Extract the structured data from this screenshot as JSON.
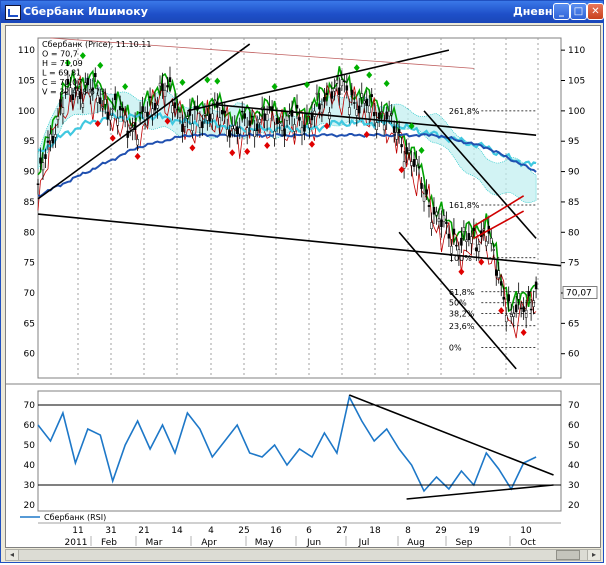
{
  "window": {
    "title": "Сбербанк Ишимоку",
    "mode": "Дневной",
    "min_label": "_",
    "max_label": "□",
    "close_label": "✕",
    "icon": "chart-app-icon"
  },
  "scroll": {
    "left_label": "◂",
    "right_label": "▸"
  },
  "chart_data": [
    {
      "type": "line",
      "name": "price",
      "info": [
        "Сбербанк (Price), 11.10.11",
        "O = 70,7",
        "H = 71,09",
        "L = 69,81",
        "C = 70,07",
        "V = 32 438 673"
      ],
      "y_ticks": [
        60,
        65,
        70,
        75,
        80,
        85,
        90,
        95,
        100,
        105,
        110
      ],
      "ylim": [
        56,
        112
      ],
      "last_value_label": "70,07",
      "last_value": 70.07,
      "fib_levels": [
        {
          "label": "261,8%",
          "value": 100.0
        },
        {
          "label": "161,8%",
          "value": 84.5
        },
        {
          "label": "100%",
          "value": 75.8
        },
        {
          "label": "61,8%",
          "value": 70.2
        },
        {
          "label": "50%",
          "value": 68.4
        },
        {
          "label": "38,2%",
          "value": 66.6
        },
        {
          "label": "23,6%",
          "value": 64.6
        },
        {
          "label": "0%",
          "value": 61.0
        }
      ],
      "x_index": [
        0,
        10,
        20,
        30,
        40,
        50,
        60,
        70,
        80,
        90,
        100,
        110,
        120,
        130,
        140,
        150,
        160,
        170,
        180,
        190,
        200
      ],
      "close_approx": [
        88,
        102,
        104,
        100,
        97,
        104,
        98,
        100,
        97,
        99,
        98,
        99,
        104,
        101,
        99,
        92,
        82,
        78,
        80,
        66,
        70
      ],
      "cloud_upper_approx": [
        93,
        103,
        105,
        103,
        102,
        103,
        101,
        100,
        101,
        99,
        99,
        100,
        103,
        102,
        101,
        100,
        99,
        96,
        92,
        92,
        90
      ],
      "cloud_lower_approx": [
        90,
        98,
        100,
        99,
        98,
        97,
        96,
        96,
        96,
        96,
        96,
        97,
        98,
        98,
        98,
        97,
        95,
        91,
        87,
        86,
        85
      ],
      "ma_cyan_approx": [
        93,
        96,
        98,
        99,
        99,
        99,
        98,
        98,
        97,
        97,
        97,
        97,
        98,
        98,
        98,
        97,
        96,
        95,
        94,
        92,
        91
      ],
      "ma_blue_approx": [
        86,
        88,
        90,
        92,
        94,
        95,
        96,
        96,
        96,
        96,
        96,
        96,
        96,
        96,
        96,
        96,
        96,
        95,
        94,
        92,
        90
      ]
    },
    {
      "type": "line",
      "name": "rsi",
      "legend": "Сбербанк (RSI)",
      "y_ticks": [
        20,
        30,
        40,
        50,
        60,
        70
      ],
      "ylim": [
        17,
        77
      ],
      "x_index": [
        0,
        5,
        10,
        15,
        20,
        25,
        30,
        35,
        40,
        45,
        50,
        55,
        60,
        65,
        70,
        75,
        80,
        85,
        90,
        95,
        100,
        105,
        110,
        115,
        120,
        125,
        130,
        135,
        140,
        145,
        150,
        155,
        160,
        165,
        170,
        175,
        180,
        185,
        190,
        195,
        200
      ],
      "values": [
        60,
        52,
        66,
        41,
        58,
        55,
        32,
        50,
        62,
        48,
        60,
        46,
        66,
        58,
        44,
        52,
        60,
        46,
        44,
        50,
        40,
        48,
        44,
        56,
        46,
        74,
        62,
        52,
        58,
        48,
        40,
        27,
        34,
        28,
        37,
        30,
        46,
        38,
        28,
        41,
        44
      ],
      "ref_lines": [
        70,
        30
      ]
    }
  ],
  "xaxis": {
    "days": [
      "11",
      "31",
      "21",
      "14",
      "4",
      "25",
      "16",
      "6",
      "27",
      "18",
      "8",
      "29",
      "19",
      "10"
    ],
    "months": [
      "2011",
      "Feb",
      "Mar",
      "Apr",
      "May",
      "Jun",
      "Jul",
      "Aug",
      "Sep",
      "Oct"
    ]
  },
  "colors": {
    "candle": "#000000",
    "up_marker": "#00b000",
    "down_marker": "#e00000",
    "cloud": "#00c0c0",
    "rsi": "#1e78c8",
    "ma_cyan": "#40c8e0",
    "ma_blue": "#2050b0",
    "kijun": "#00a000",
    "tenkan": "#c00000",
    "trend": "#000000"
  }
}
